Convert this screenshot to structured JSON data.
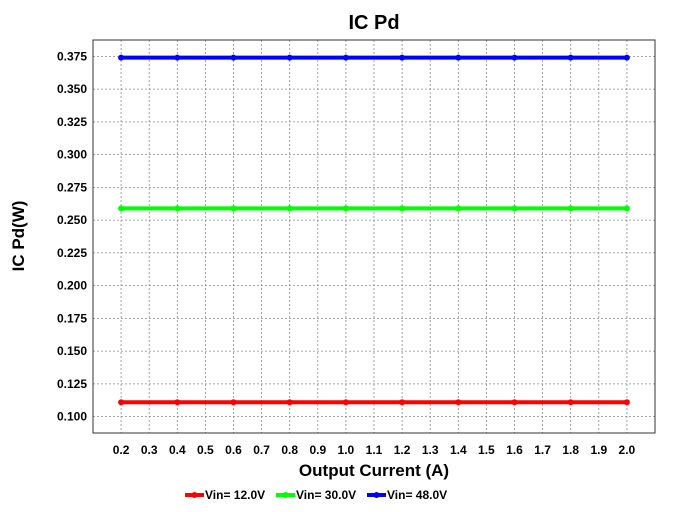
{
  "chart_data": {
    "type": "line",
    "title": "IC Pd",
    "xlabel": "Output Current (A)",
    "ylabel": "IC Pd(W)",
    "xlim": [
      0.1,
      2.1
    ],
    "ylim": [
      0.0875,
      0.3875
    ],
    "grid": true,
    "legend_position": "bottom",
    "x": [
      0.2,
      0.3,
      0.4,
      0.5,
      0.6,
      0.7,
      0.8,
      0.9,
      1.0,
      1.1,
      1.2,
      1.3,
      1.4,
      1.5,
      1.6,
      1.7,
      1.8,
      1.9,
      2.0
    ],
    "x_ticks": [
      "0.2",
      "0.3",
      "0.4",
      "0.5",
      "0.6",
      "0.7",
      "0.8",
      "0.9",
      "1.0",
      "1.1",
      "1.2",
      "1.3",
      "1.4",
      "1.5",
      "1.6",
      "1.7",
      "1.8",
      "1.9",
      "2.0"
    ],
    "y_ticks": [
      "0.100",
      "0.125",
      "0.150",
      "0.175",
      "0.200",
      "0.225",
      "0.250",
      "0.275",
      "0.300",
      "0.325",
      "0.350",
      "0.375"
    ],
    "series": [
      {
        "name": "Vin= 12.0V",
        "color": "#ff0000",
        "values": [
          0.111,
          0.111,
          0.111,
          0.111,
          0.111,
          0.111,
          0.111,
          0.111,
          0.111,
          0.111,
          0.111,
          0.111,
          0.111,
          0.111,
          0.111,
          0.111,
          0.111,
          0.111,
          0.111
        ]
      },
      {
        "name": "Vin= 30.0V",
        "color": "#00ff00",
        "values": [
          0.259,
          0.259,
          0.259,
          0.259,
          0.259,
          0.259,
          0.259,
          0.259,
          0.259,
          0.259,
          0.259,
          0.259,
          0.259,
          0.259,
          0.259,
          0.259,
          0.259,
          0.259,
          0.259
        ]
      },
      {
        "name": "Vin= 48.0V",
        "color": "#0000ff",
        "values": [
          0.374,
          0.374,
          0.374,
          0.374,
          0.374,
          0.374,
          0.374,
          0.374,
          0.374,
          0.374,
          0.374,
          0.374,
          0.374,
          0.374,
          0.374,
          0.374,
          0.374,
          0.374,
          0.374
        ]
      }
    ]
  }
}
